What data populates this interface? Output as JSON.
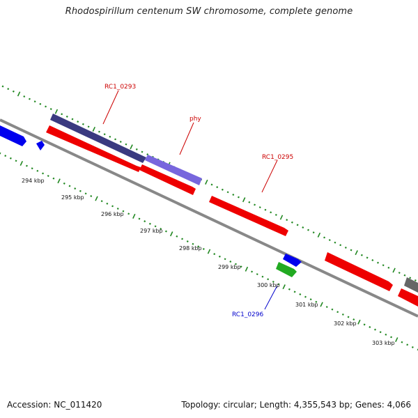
{
  "title": "Rhodospirillum centenum SW chromosome, complete genome",
  "footer": {
    "accession": "Accession: NC_011420",
    "summary": "Topology: circular; Length: 4,355,543 bp; Genes: 4,066"
  },
  "colors": {
    "forward_cds": "#ee0000",
    "reverse_cds_blue": "#0000ee",
    "highlight_dark": "#3a3a80",
    "highlight_light": "#7766dd",
    "rna": "#22aa22",
    "other": "#666666",
    "ticks": "#228822",
    "backbone": "#888888",
    "label_red": "#cc0000",
    "label_blue": "#0000cc"
  },
  "kbp_labels": [
    "294 kbp",
    "295 kbp",
    "296 kbp",
    "297 kbp",
    "298 kbp",
    "299 kbp",
    "300 kbp",
    "301 kbp",
    "302 kbp",
    "303 kbp"
  ],
  "gene_labels": [
    {
      "text": "RC1_0293",
      "color": "label_red"
    },
    {
      "text": "phy",
      "color": "label_red"
    },
    {
      "text": "RC1_0295",
      "color": "label_red"
    },
    {
      "text": "RC1_0296",
      "color": "label_blue"
    }
  ]
}
